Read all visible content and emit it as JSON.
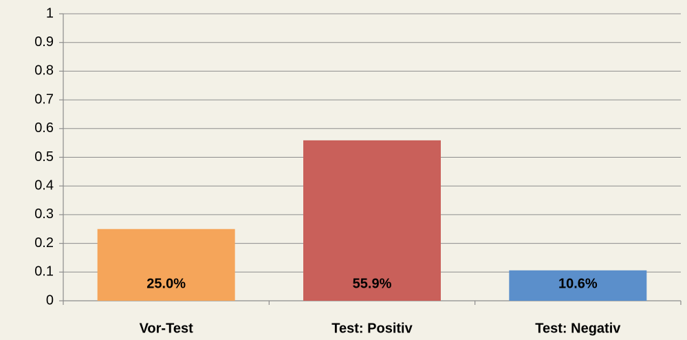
{
  "chart_data": {
    "type": "bar",
    "categories": [
      "Vor-Test",
      "Test: Positiv",
      "Test: Negativ"
    ],
    "values": [
      0.25,
      0.559,
      0.106
    ],
    "value_labels": [
      "25.0%",
      "55.9%",
      "10.6%"
    ],
    "colors": [
      "#f5a55a",
      "#c9605a",
      "#5b8fcb"
    ],
    "ylim": [
      0,
      1
    ],
    "yticks": [
      0,
      0.1,
      0.2,
      0.3,
      0.4,
      0.5,
      0.6,
      0.7,
      0.8,
      0.9,
      1
    ],
    "grid": true
  }
}
